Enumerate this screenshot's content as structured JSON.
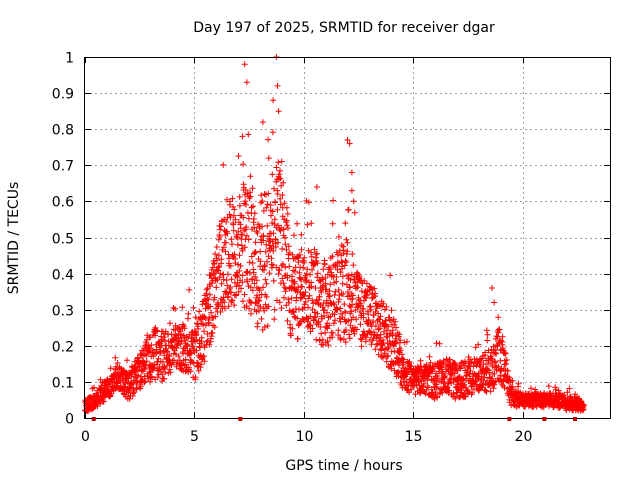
{
  "chart_data": {
    "type": "scatter",
    "title": "Day 197 of 2025, SRMTID for receiver dgar",
    "xlabel": "GPS time / hours",
    "ylabel": "SRMTID / TECUs",
    "xlim": [
      0,
      24
    ],
    "ylim": [
      0,
      1
    ],
    "x_ticks": [
      0,
      5,
      10,
      15,
      20
    ],
    "x_tick_labels": [
      "0",
      "5",
      "10",
      "15",
      "20"
    ],
    "y_ticks": [
      0,
      0.1,
      0.2,
      0.3,
      0.4,
      0.5,
      0.6,
      0.7,
      0.8,
      0.9,
      1
    ],
    "y_tick_labels": [
      "0",
      "0.1",
      "0.2",
      "0.3",
      "0.4",
      "0.5",
      "0.6",
      "0.7",
      "0.8",
      "0.9",
      "1"
    ],
    "grid": true,
    "marker": "+",
    "color": "#ff0000",
    "gap_marker_color": "#c00000",
    "data_gaps_x": [
      0.4,
      7.1,
      19.4,
      21.0,
      22.4
    ],
    "envelope_approx": {
      "x": [
        0,
        0.5,
        1.0,
        1.5,
        2.0,
        2.5,
        3.0,
        3.5,
        4.0,
        4.5,
        5.0,
        5.5,
        6.0,
        6.5,
        7.0,
        7.5,
        8.0,
        8.5,
        9.0,
        9.5,
        10.0,
        10.5,
        11.0,
        11.5,
        12.0,
        12.5,
        13.0,
        13.5,
        14.0,
        14.5,
        15.0,
        15.5,
        16.0,
        16.5,
        17.0,
        17.5,
        18.0,
        18.5,
        19.0,
        19.5,
        20.0,
        20.5,
        21.0,
        21.5,
        22.0,
        22.5,
        22.8
      ],
      "values": [
        0.03,
        0.05,
        0.08,
        0.11,
        0.09,
        0.13,
        0.18,
        0.17,
        0.19,
        0.2,
        0.17,
        0.25,
        0.38,
        0.46,
        0.47,
        0.48,
        0.42,
        0.45,
        0.5,
        0.32,
        0.36,
        0.34,
        0.32,
        0.34,
        0.35,
        0.3,
        0.28,
        0.25,
        0.22,
        0.14,
        0.1,
        0.11,
        0.1,
        0.12,
        0.1,
        0.11,
        0.12,
        0.13,
        0.18,
        0.06,
        0.05,
        0.05,
        0.05,
        0.05,
        0.04,
        0.04,
        0.03
      ],
      "spread": [
        0.02,
        0.02,
        0.03,
        0.03,
        0.04,
        0.05,
        0.08,
        0.07,
        0.06,
        0.07,
        0.07,
        0.1,
        0.12,
        0.15,
        0.17,
        0.18,
        0.2,
        0.18,
        0.22,
        0.12,
        0.12,
        0.12,
        0.13,
        0.12,
        0.15,
        0.1,
        0.09,
        0.08,
        0.09,
        0.06,
        0.04,
        0.04,
        0.05,
        0.05,
        0.05,
        0.05,
        0.05,
        0.06,
        0.08,
        0.03,
        0.02,
        0.02,
        0.02,
        0.02,
        0.02,
        0.02,
        0.01
      ]
    },
    "spikes": [
      {
        "x": 7.3,
        "y": 0.98
      },
      {
        "x": 7.4,
        "y": 0.93
      },
      {
        "x": 7.2,
        "y": 0.78
      },
      {
        "x": 8.4,
        "y": 0.72
      },
      {
        "x": 8.75,
        "y": 1.0
      },
      {
        "x": 8.8,
        "y": 0.92
      },
      {
        "x": 8.85,
        "y": 0.85
      },
      {
        "x": 8.6,
        "y": 0.88
      },
      {
        "x": 10.6,
        "y": 0.64
      },
      {
        "x": 12.0,
        "y": 0.77
      },
      {
        "x": 12.1,
        "y": 0.76
      },
      {
        "x": 12.2,
        "y": 0.68
      },
      {
        "x": 12.2,
        "y": 0.63
      },
      {
        "x": 11.9,
        "y": 0.54
      },
      {
        "x": 18.6,
        "y": 0.36
      },
      {
        "x": 18.7,
        "y": 0.32
      }
    ]
  }
}
